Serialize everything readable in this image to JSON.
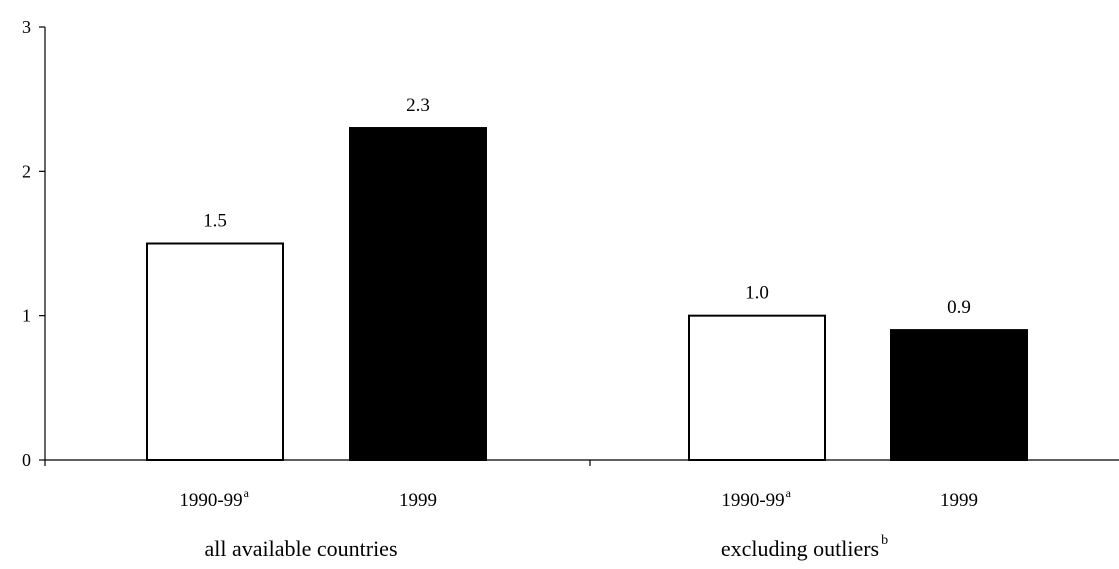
{
  "chart_data": {
    "type": "bar",
    "title": "",
    "xlabel": "",
    "ylabel": "",
    "ylim": [
      0,
      3
    ],
    "yticks": [
      "0",
      "1",
      "2",
      "3"
    ],
    "grid": false,
    "legend": "none",
    "groups": [
      {
        "label": "all available countries",
        "label_sup": "",
        "bars": [
          {
            "category": "1990-99",
            "sup": "a",
            "value": 1.5,
            "label": "1.5",
            "fill": "#ffffff"
          },
          {
            "category": "1999",
            "sup": "",
            "value": 2.3,
            "label": "2.3",
            "fill": "#000000"
          }
        ]
      },
      {
        "label": "excluding outliers",
        "label_sup": "b",
        "bars": [
          {
            "category": "1990-99",
            "sup": "a",
            "value": 1.0,
            "label": "1.0",
            "fill": "#ffffff"
          },
          {
            "category": "1999",
            "sup": "",
            "value": 0.9,
            "label": "0.9",
            "fill": "#000000"
          }
        ]
      }
    ]
  }
}
